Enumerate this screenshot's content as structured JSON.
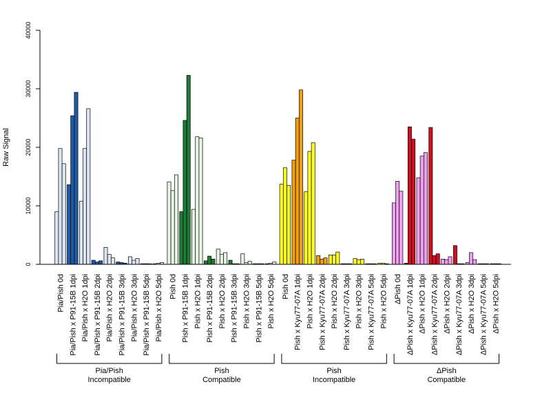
{
  "chart_data": {
    "type": "bar",
    "ylabel": "Raw Signal",
    "xlabel": "",
    "ylim": [
      0,
      40000
    ],
    "yticks": [
      "0",
      "10000",
      "20000",
      "30000",
      "40000"
    ],
    "grid": false,
    "conditions": [
      {
        "label": "Pia/Pish 0d",
        "values": [
          9000,
          19800,
          17200
        ],
        "color": "#dce6f2",
        "group": 0
      },
      {
        "label": "Pia/Pish x P91-15B 1dpi",
        "values": [
          13600,
          25400,
          29400
        ],
        "color": "#1f5aa6",
        "group": 0
      },
      {
        "label": "Pia/Pish x H2O 1dpi",
        "values": [
          10800,
          19800,
          26600
        ],
        "color": "#dce6f2",
        "group": 0
      },
      {
        "label": "Pia/Pish x P91-15B 2dpi",
        "values": [
          700,
          400,
          600
        ],
        "color": "#1f5aa6",
        "group": 0
      },
      {
        "label": "Pia/Pish x H2O 2dpi",
        "values": [
          2900,
          1700,
          1100
        ],
        "color": "#dce6f2",
        "group": 0
      },
      {
        "label": "Pia/Pish x P91-15B 3dpi",
        "values": [
          400,
          300,
          200
        ],
        "color": "#1f5aa6",
        "group": 0
      },
      {
        "label": "Pia/Pish x H2O 3dpi",
        "values": [
          1300,
          700,
          1000
        ],
        "color": "#dce6f2",
        "group": 0
      },
      {
        "label": "Pia/Pish x P91-15B 5dpi",
        "values": [
          100,
          100,
          100
        ],
        "color": "#1f5aa6",
        "group": 0
      },
      {
        "label": "Pia/Pish x H2O 5dpi",
        "values": [
          100,
          200,
          300
        ],
        "color": "#dce6f2",
        "group": 0
      },
      {
        "label": "Pish 0d",
        "values": [
          14100,
          12600,
          15300
        ],
        "color": "#e8f5e4",
        "group": 1
      },
      {
        "label": "Pish x P91-15B 1dpi",
        "values": [
          9000,
          24600,
          32300
        ],
        "color": "#1f7a36",
        "group": 1
      },
      {
        "label": "Pish x H2O 1dpi",
        "values": [
          9400,
          21800,
          21600
        ],
        "color": "#e8f5e4",
        "group": 1
      },
      {
        "label": "Pish x P91-15B 2dpi",
        "values": [
          600,
          1400,
          900
        ],
        "color": "#1f7a36",
        "group": 1
      },
      {
        "label": "Pish x H2O 2dpi",
        "values": [
          2600,
          1700,
          2000
        ],
        "color": "#e8f5e4",
        "group": 1
      },
      {
        "label": "Pish x P91-15B 3dpi",
        "values": [
          700,
          100,
          100
        ],
        "color": "#1f7a36",
        "group": 1
      },
      {
        "label": "Pish x H2O 3dpi",
        "values": [
          1800,
          300,
          500
        ],
        "color": "#e8f5e4",
        "group": 1
      },
      {
        "label": "Pish x P91-15B 5dpi",
        "values": [
          100,
          100,
          100
        ],
        "color": "#1f7a36",
        "group": 1
      },
      {
        "label": "Pish x H2O 5dpi",
        "values": [
          100,
          200,
          400
        ],
        "color": "#e8f5e4",
        "group": 1
      },
      {
        "label": "Pish 0d",
        "values": [
          13700,
          16500,
          13500
        ],
        "color": "#ffff22",
        "group": 2
      },
      {
        "label": "Pish x Kyu77-07A 1dpi",
        "values": [
          17800,
          25000,
          29800
        ],
        "color": "#f0a010",
        "group": 2
      },
      {
        "label": "Pish x H2O 1dpi",
        "values": [
          12400,
          19300,
          20800
        ],
        "color": "#ffff22",
        "group": 2
      },
      {
        "label": "Pish x Kyu77-07A 2dpi",
        "values": [
          1500,
          900,
          1100
        ],
        "color": "#f0a010",
        "group": 2
      },
      {
        "label": "Pish x H2O 2dpi",
        "values": [
          1600,
          1600,
          2100
        ],
        "color": "#ffff22",
        "group": 2
      },
      {
        "label": "Pish x Kyu77-07A 3dpi",
        "values": [
          100,
          100,
          100
        ],
        "color": "#f0a010",
        "group": 2
      },
      {
        "label": "Pish x H2O 3dpi",
        "values": [
          1000,
          800,
          900
        ],
        "color": "#ffff22",
        "group": 2
      },
      {
        "label": "Pish x Kyu77-07A 5dpi",
        "values": [
          100,
          100,
          100
        ],
        "color": "#f0a010",
        "group": 2
      },
      {
        "label": "Pish x H2O 5dpi",
        "values": [
          200,
          200,
          100
        ],
        "color": "#ffff22",
        "group": 2
      },
      {
        "label": "ΔPish 0d",
        "values": [
          10500,
          14200,
          12500
        ],
        "color": "#f0a0ee",
        "group": 3
      },
      {
        "label": "ΔPish x Kyu77-07A 1dpi",
        "values": [
          200,
          23500,
          21400
        ],
        "color": "#d0101e",
        "group": 3
      },
      {
        "label": "ΔPish x H2O 1dpi",
        "values": [
          14800,
          18500,
          19100
        ],
        "color": "#f0a0ee",
        "group": 3
      },
      {
        "label": "ΔPish x Kyu77-07A 2dpi",
        "values": [
          23400,
          1500,
          1800
        ],
        "color": "#d0101e",
        "group": 3
      },
      {
        "label": "ΔPish x H2O 2dpi",
        "values": [
          900,
          800,
          1300
        ],
        "color": "#f0a0ee",
        "group": 3
      },
      {
        "label": "ΔPish x Kyu77-07A 3dpi",
        "values": [
          3200,
          100,
          100
        ],
        "color": "#d0101e",
        "group": 3
      },
      {
        "label": "ΔPish x H2O 3dpi",
        "values": [
          300,
          2000,
          800
        ],
        "color": "#f0a0ee",
        "group": 3
      },
      {
        "label": "ΔPish x Kyu77-07A 5dpi",
        "values": [
          100,
          100,
          100
        ],
        "color": "#d0101e",
        "group": 3
      },
      {
        "label": "ΔPish x H2O 5dpi",
        "values": [
          100,
          100,
          100
        ],
        "color": "#f0a0ee",
        "group": 3
      }
    ],
    "groups": [
      {
        "line1": "Pia/Pish",
        "line2": "Incompatible"
      },
      {
        "line1": "Pish",
        "line2": "Compatible"
      },
      {
        "line1": "Pish",
        "line2": "Incompatible"
      },
      {
        "line1": "ΔPish",
        "line2": "Compatible"
      }
    ]
  }
}
